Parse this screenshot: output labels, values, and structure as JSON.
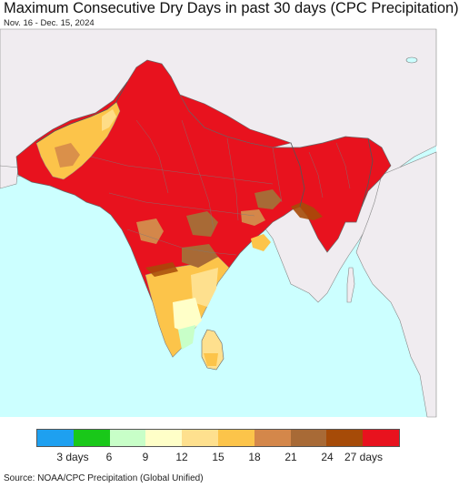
{
  "title": "Maximum Consecutive Dry Days in past 30 days (CPC Precipitation)",
  "subtitle": "Nov. 16 - Dec. 15, 2024",
  "source": "Source: NOAA/CPC Precipitation (Global Unified)",
  "colors": {
    "ocean": "#ccffff",
    "land_outside": "#f0ecf0",
    "border": "#888888",
    "c27": "#e8121e",
    "c24": "#a64b08",
    "c21": "#a86a36",
    "c18": "#d4874a",
    "c15": "#fcc44a",
    "c12": "#fee08e",
    "c9": "#ffffc8",
    "c6": "#c8ffc8",
    "c3": "#19c819",
    "c0": "#1ea0f0"
  },
  "legend": {
    "swatches": [
      "#1ea0f0",
      "#19c819",
      "#c8ffc8",
      "#ffffc8",
      "#fee08e",
      "#fcc44a",
      "#d4874a",
      "#a86a36",
      "#a64b08",
      "#e8121e"
    ],
    "labels": [
      "3 days",
      "6",
      "9",
      "12",
      "15",
      "18",
      "21",
      "24",
      "27 days"
    ]
  }
}
